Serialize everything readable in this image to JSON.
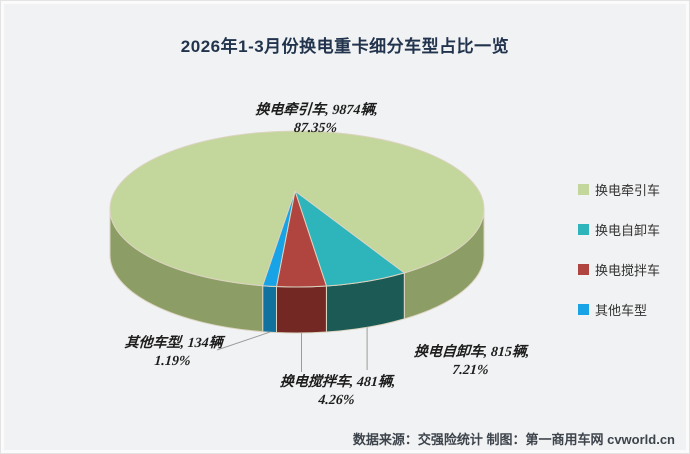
{
  "title": "2026年1-3月份换电重卡细分车型占比一览",
  "footer": {
    "credit": "数据来源：交强险统计 制图：第一商用车网 cvworld.cn"
  },
  "colors": {
    "background": "#f1f2f3",
    "title_text": "#22344d",
    "label_text": "#1d1d1d",
    "leader_line": "#9b9b9b",
    "slice_edge": "#dcd4c1",
    "green": "#c3d69b",
    "teal": "#2eb5bc",
    "red": "#b0443f",
    "blue": "#17a3e6"
  },
  "chart_data": {
    "type": "pie",
    "style": "3d",
    "title": "2026年1-3月份换电重卡细分车型占比一览",
    "unit": "辆",
    "legend_position": "right",
    "segments": [
      {
        "name": "换电牵引车",
        "value": 9874,
        "pct": 87.35,
        "color": "#c3d69b",
        "side_color": "#8c9d66",
        "label": "换电牵引车, 9874辆,",
        "pct_label": "87.35%"
      },
      {
        "name": "换电自卸车",
        "value": 815,
        "pct": 7.21,
        "color": "#2eb5bc",
        "side_color": "#1c5b55",
        "label": "换电自卸车, 815辆,",
        "pct_label": "7.21%"
      },
      {
        "name": "换电搅拌车",
        "value": 481,
        "pct": 4.26,
        "color": "#b0443f",
        "side_color": "#742823",
        "label": "换电搅拌车, 481辆,",
        "pct_label": "4.26%"
      },
      {
        "name": "其他车型",
        "value": 134,
        "pct": 1.19,
        "color": "#17a3e6",
        "side_color": "#11719f",
        "label": "其他车型, 134辆",
        "pct_label": "1.19%"
      }
    ]
  }
}
